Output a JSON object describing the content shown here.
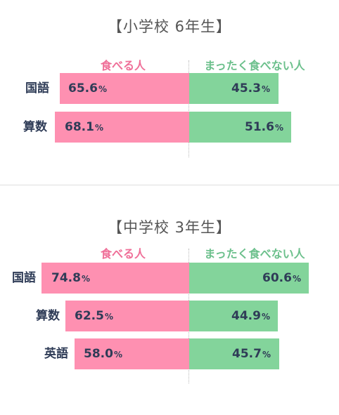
{
  "chart_data": [
    {
      "type": "bar",
      "title": "【小学校 6年生】",
      "legend": [
        "食べる人",
        "まったく食べない人"
      ],
      "categories": [
        "国語",
        "算数"
      ],
      "series": [
        {
          "name": "食べる人",
          "values": [
            65.6,
            68.1
          ],
          "color": "#fe90b1"
        },
        {
          "name": "まったく食べない人",
          "values": [
            45.3,
            51.6
          ],
          "color": "#83d49b"
        }
      ],
      "unit": "%"
    },
    {
      "type": "bar",
      "title": "【中学校 3年生】",
      "legend": [
        "食べる人",
        "まったく食べない人"
      ],
      "categories": [
        "国語",
        "算数",
        "英語"
      ],
      "series": [
        {
          "name": "食べる人",
          "values": [
            74.8,
            62.5,
            58.0
          ],
          "color": "#fe90b1"
        },
        {
          "name": "まったく食べない人",
          "values": [
            60.6,
            44.9,
            45.7
          ],
          "color": "#83d49b"
        }
      ],
      "unit": "%"
    }
  ],
  "labels": {
    "p1_c1_left": "65.6",
    "p1_c1_right": "45.3",
    "p1_c2_left": "68.1",
    "p1_c2_right": "51.6",
    "p2_c1_left": "74.8",
    "p2_c1_right": "60.6",
    "p2_c2_left": "62.5",
    "p2_c2_right": "44.9",
    "p2_c3_left": "58.0",
    "p2_c3_right": "45.7"
  }
}
